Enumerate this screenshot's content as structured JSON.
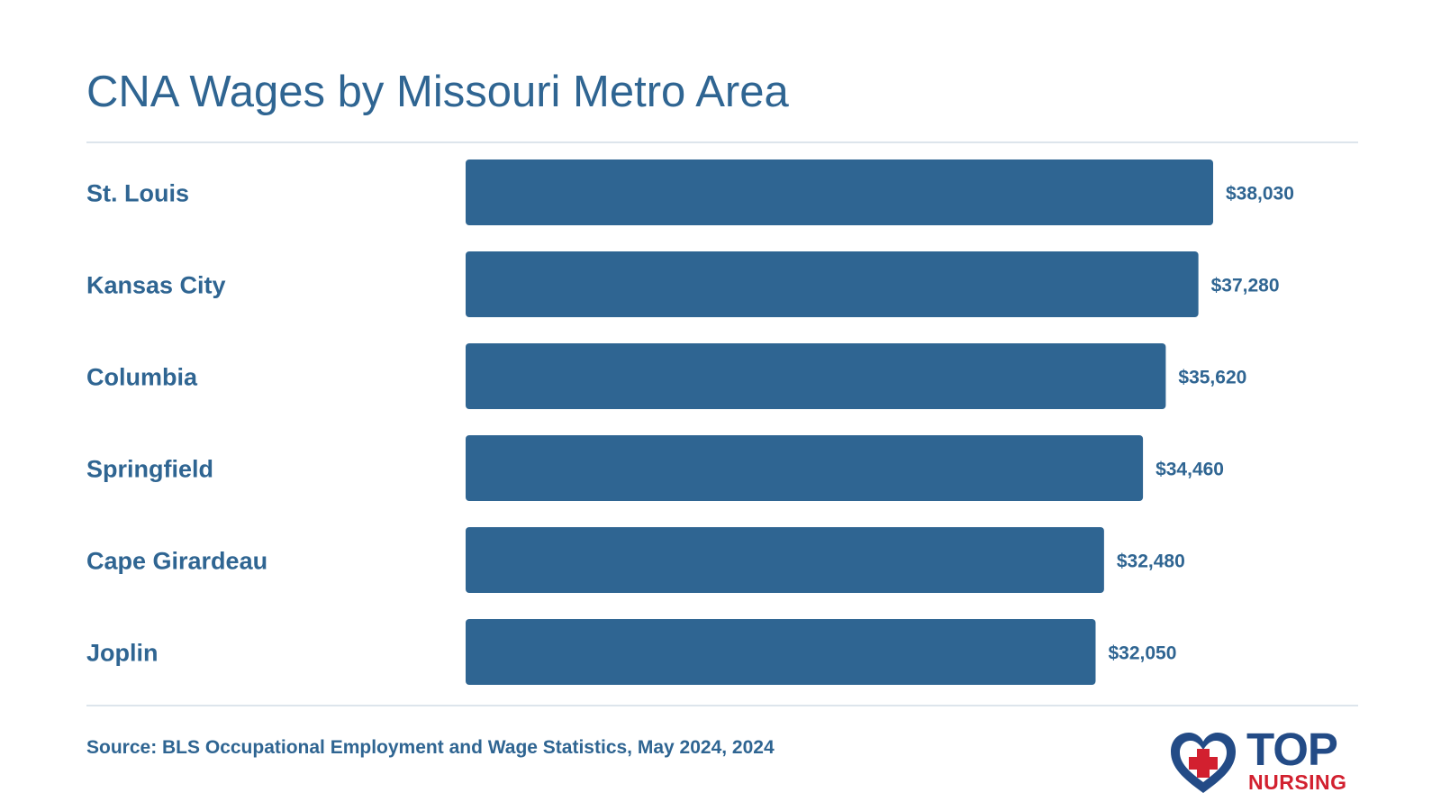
{
  "title": "CNA Wages by Missouri Metro Area",
  "source": "Source: BLS Occupational Employment and Wage Statistics, May 2024, 2024",
  "logo": {
    "line1": "TOP",
    "line2": "NURSING",
    "icon": "heart-cross-icon"
  },
  "colors": {
    "bar": "#2f6592",
    "text": "#2f6592",
    "rule": "#dde5ec",
    "logo_blue": "#234b86",
    "logo_red": "#d2202f"
  },
  "chart_data": {
    "type": "bar",
    "orientation": "horizontal",
    "categories": [
      "St. Louis",
      "Kansas City",
      "Columbia",
      "Springfield",
      "Cape Girardeau",
      "Joplin"
    ],
    "values": [
      38030,
      37280,
      35620,
      34460,
      32480,
      32050
    ],
    "value_labels": [
      "$38,030",
      "$37,280",
      "$35,620",
      "$34,460",
      "$32,480",
      "$32,050"
    ],
    "title": "CNA Wages by Missouri Metro Area",
    "xlabel": "",
    "ylabel": "",
    "grid": false,
    "legend": "none"
  }
}
